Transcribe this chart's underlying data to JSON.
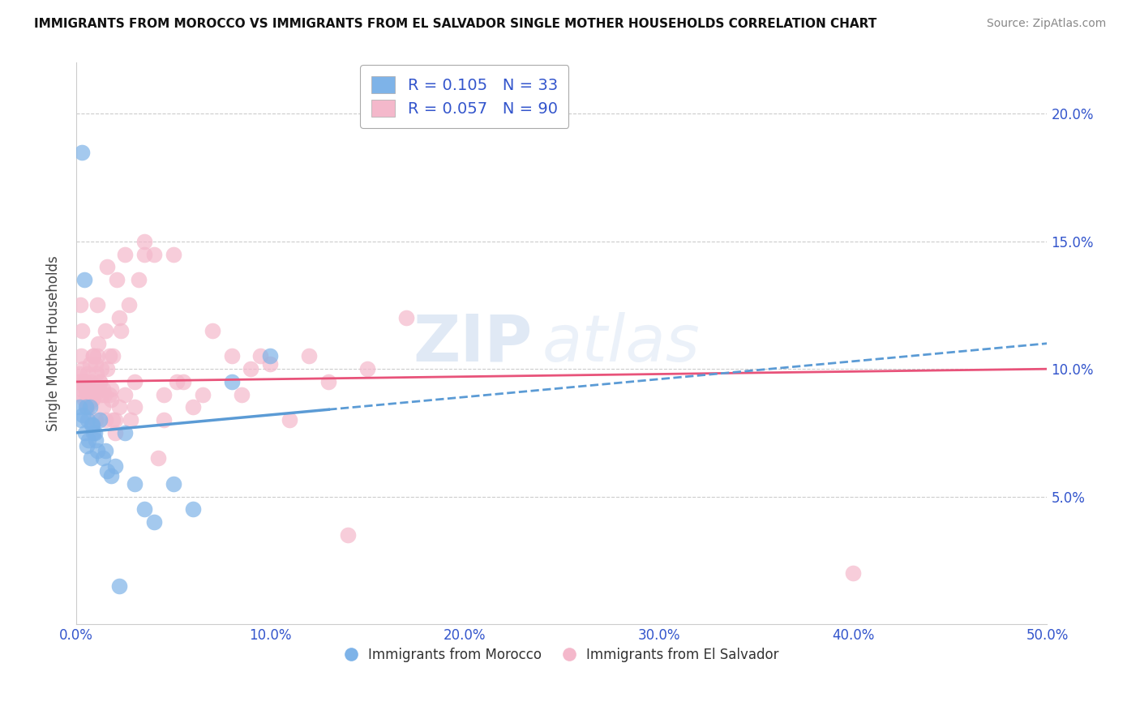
{
  "title": "IMMIGRANTS FROM MOROCCO VS IMMIGRANTS FROM EL SALVADOR SINGLE MOTHER HOUSEHOLDS CORRELATION CHART",
  "source": "Source: ZipAtlas.com",
  "ylabel": "Single Mother Households",
  "xlim": [
    0.0,
    50.0
  ],
  "ylim": [
    0.0,
    22.0
  ],
  "x_tick_vals": [
    0,
    10,
    20,
    30,
    40,
    50
  ],
  "y_tick_vals": [
    5,
    10,
    15,
    20
  ],
  "legend_morocco_label": "R = 0.105   N = 33",
  "legend_elsalvador_label": "R = 0.057   N = 90",
  "color_morocco": "#7eb3e8",
  "color_elsalvador": "#f4b8cb",
  "color_morocco_line": "#5b9bd5",
  "color_elsalvador_line": "#e8537a",
  "watermark_zip": "ZIP",
  "watermark_atlas": "atlas",
  "morocco_x": [
    0.3,
    0.4,
    0.5,
    0.6,
    0.7,
    0.8,
    0.9,
    1.0,
    1.1,
    1.2,
    1.4,
    1.6,
    1.8,
    2.0,
    2.5,
    3.0,
    3.5,
    4.0,
    5.0,
    6.0,
    8.0,
    10.0,
    0.15,
    0.25,
    0.35,
    0.45,
    0.55,
    0.65,
    0.75,
    0.85,
    0.95,
    1.5,
    2.2
  ],
  "morocco_y": [
    18.5,
    13.5,
    8.5,
    8.0,
    8.5,
    7.8,
    7.5,
    7.2,
    6.8,
    8.0,
    6.5,
    6.0,
    5.8,
    6.2,
    7.5,
    5.5,
    4.5,
    4.0,
    5.5,
    4.5,
    9.5,
    10.5,
    8.5,
    8.0,
    8.2,
    7.5,
    7.0,
    7.2,
    6.5,
    7.8,
    7.5,
    6.8,
    1.5
  ],
  "elsalvador_x": [
    0.1,
    0.15,
    0.2,
    0.25,
    0.3,
    0.35,
    0.4,
    0.45,
    0.5,
    0.55,
    0.6,
    0.65,
    0.7,
    0.75,
    0.8,
    0.85,
    0.9,
    0.95,
    1.0,
    1.05,
    1.1,
    1.15,
    1.2,
    1.3,
    1.4,
    1.5,
    1.6,
    1.7,
    1.8,
    1.9,
    2.0,
    2.1,
    2.2,
    2.3,
    2.5,
    2.7,
    3.0,
    3.2,
    3.5,
    4.0,
    4.5,
    5.0,
    5.5,
    6.0,
    7.0,
    8.0,
    9.0,
    10.0,
    11.0,
    12.0,
    13.0,
    14.0,
    15.0,
    17.0,
    0.2,
    0.3,
    0.4,
    0.5,
    0.6,
    0.7,
    0.8,
    0.9,
    1.0,
    1.1,
    1.2,
    1.3,
    1.4,
    1.5,
    1.6,
    1.7,
    1.8,
    1.9,
    2.0,
    2.5,
    3.0,
    3.5,
    4.5,
    6.5,
    9.5,
    0.25,
    0.55,
    0.85,
    1.15,
    1.45,
    2.2,
    2.8,
    4.2,
    5.2,
    8.5,
    40.0
  ],
  "elsalvador_y": [
    9.5,
    9.8,
    9.2,
    10.5,
    9.0,
    10.0,
    8.8,
    9.5,
    9.2,
    8.5,
    9.8,
    9.0,
    10.2,
    9.5,
    8.8,
    9.2,
    10.5,
    9.0,
    10.2,
    9.8,
    10.5,
    11.0,
    9.5,
    10.0,
    9.2,
    11.5,
    14.0,
    9.0,
    8.8,
    10.5,
    8.0,
    13.5,
    12.0,
    11.5,
    14.5,
    12.5,
    9.5,
    13.5,
    14.5,
    14.5,
    8.0,
    14.5,
    9.5,
    8.5,
    11.5,
    10.5,
    10.0,
    10.2,
    8.0,
    10.5,
    9.5,
    3.5,
    10.0,
    12.0,
    12.5,
    11.5,
    9.5,
    9.2,
    8.5,
    9.0,
    8.8,
    10.5,
    8.0,
    12.5,
    9.5,
    9.0,
    8.5,
    8.0,
    10.0,
    10.5,
    9.2,
    8.0,
    7.5,
    9.0,
    8.5,
    15.0,
    9.0,
    9.0,
    10.5,
    9.5,
    9.0,
    8.8,
    9.2,
    9.0,
    8.5,
    8.0,
    6.5,
    9.5,
    9.0,
    2.0
  ]
}
